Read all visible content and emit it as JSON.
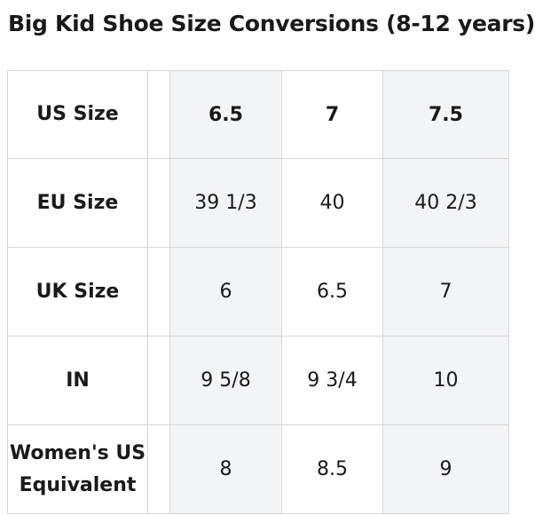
{
  "title": "Big Kid Shoe Size Conversions (8-12 years)",
  "table": {
    "rows": [
      {
        "label": "US Size",
        "values": [
          "6.5",
          "7",
          "7.5"
        ]
      },
      {
        "label": "EU Size",
        "values": [
          "39 1/3",
          "40",
          "40 2/3"
        ]
      },
      {
        "label": "UK Size",
        "values": [
          "6",
          "6.5",
          "7"
        ]
      },
      {
        "label": "IN",
        "values": [
          "9 5/8",
          "9 3/4",
          "10"
        ]
      },
      {
        "label": "Women's US Equivalent",
        "values": [
          "8",
          "8.5",
          "9"
        ]
      }
    ]
  }
}
